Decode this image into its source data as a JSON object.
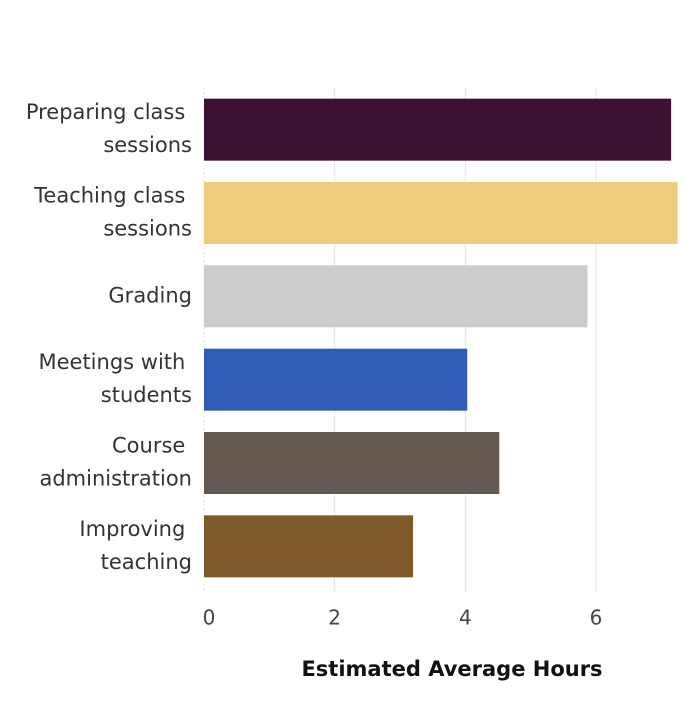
{
  "chart_data": {
    "type": "hbar",
    "categories": [
      "Preparing class sessions",
      "Teaching class sessions",
      "Grading",
      "Meetings with students",
      "Course administration",
      "Improving teaching"
    ],
    "values": [
      7.15,
      7.25,
      5.87,
      4.03,
      4.52,
      3.2
    ],
    "colors": [
      "#3d1230",
      "#eecd7e",
      "#cccccc",
      "#305cb3",
      "#635950",
      "#7f5a2b"
    ],
    "xlim": [
      0,
      7.5
    ],
    "xticks": [
      0,
      2,
      4,
      6
    ],
    "grid": true,
    "xlabel": "Estimated Average Hours"
  }
}
